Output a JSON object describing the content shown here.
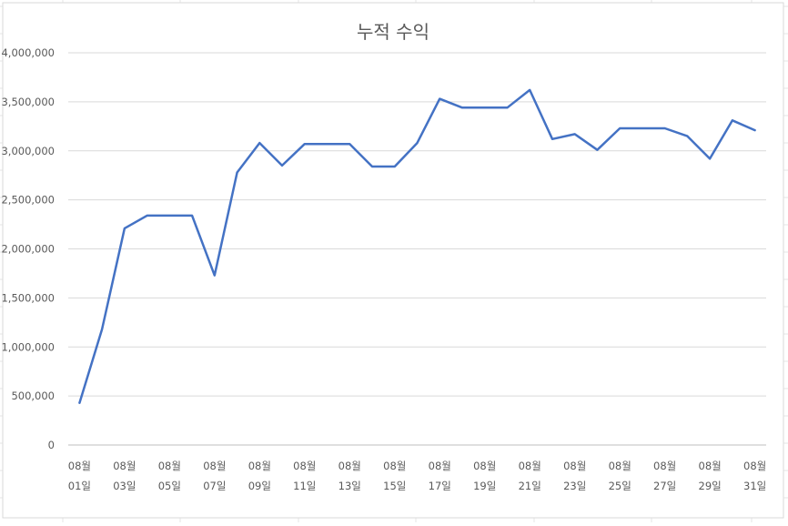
{
  "chart_data": {
    "type": "line",
    "title": "누적 수익",
    "xlabel": "",
    "ylabel": "",
    "ylim": [
      0,
      4000000
    ],
    "grid": true,
    "legend": "none",
    "y_ticks": [
      "0",
      "500,000",
      "1,000,000",
      "1,500,000",
      "2,000,000",
      "2,500,000",
      "3,000,000",
      "3,500,000",
      "4,000,000"
    ],
    "x_tick_labels": [
      [
        "08월",
        "01일"
      ],
      [
        "08월",
        "03일"
      ],
      [
        "08월",
        "05일"
      ],
      [
        "08월",
        "07일"
      ],
      [
        "08월",
        "09일"
      ],
      [
        "08월",
        "11일"
      ],
      [
        "08월",
        "13일"
      ],
      [
        "08월",
        "15일"
      ],
      [
        "08월",
        "17일"
      ],
      [
        "08월",
        "19일"
      ],
      [
        "08월",
        "21일"
      ],
      [
        "08월",
        "23일"
      ],
      [
        "08월",
        "25일"
      ],
      [
        "08월",
        "27일"
      ],
      [
        "08월",
        "29일"
      ],
      [
        "08월",
        "31일"
      ]
    ],
    "x": [
      "08월 01일",
      "08월 02일",
      "08월 03일",
      "08월 04일",
      "08월 05일",
      "08월 06일",
      "08월 07일",
      "08월 08일",
      "08월 09일",
      "08월 10일",
      "08월 11일",
      "08월 12일",
      "08월 13일",
      "08월 14일",
      "08월 15일",
      "08월 16일",
      "08월 17일",
      "08월 18일",
      "08월 19일",
      "08월 20일",
      "08월 21일",
      "08월 22일",
      "08월 23일",
      "08월 24일",
      "08월 25일",
      "08월 26일",
      "08월 27일",
      "08월 28일",
      "08월 29일",
      "08월 30일",
      "08월 31일"
    ],
    "series": [
      {
        "color": "#4472C4",
        "values": [
          430000,
          1180000,
          2210000,
          2340000,
          2340000,
          2340000,
          1730000,
          2780000,
          3080000,
          2850000,
          3070000,
          3070000,
          3070000,
          2840000,
          2840000,
          3080000,
          3530000,
          3440000,
          3440000,
          3440000,
          3620000,
          3120000,
          3170000,
          3010000,
          3230000,
          3230000,
          3230000,
          3150000,
          2920000,
          3310000,
          3210000
        ]
      }
    ]
  }
}
